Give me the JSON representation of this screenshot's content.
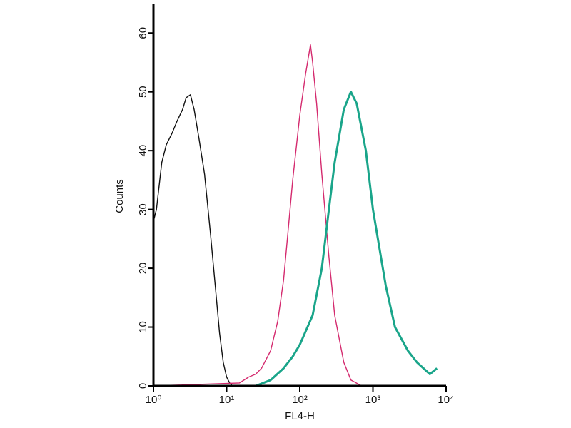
{
  "chart_data": {
    "type": "line",
    "x_label": "FL4-H",
    "y_label": "Counts",
    "xscale": "log",
    "xlim": [
      1,
      10000
    ],
    "xticks": [
      {
        "value": 1,
        "label": "10⁰"
      },
      {
        "value": 10,
        "label": "10¹"
      },
      {
        "value": 100,
        "label": "10²"
      },
      {
        "value": 1000,
        "label": "10³"
      },
      {
        "value": 10000,
        "label": "10⁴"
      }
    ],
    "ylim": [
      0,
      65
    ],
    "yticks": [
      0,
      10,
      20,
      30,
      40,
      50,
      60
    ],
    "grid": false,
    "series": [
      {
        "color": "#111111",
        "x": [
          1,
          1.1,
          1.3,
          1.5,
          1.8,
          2.1,
          2.5,
          2.8,
          3.2,
          3.6,
          4.2,
          5,
          6,
          7,
          8,
          9,
          10,
          11,
          12,
          14
        ],
        "values": [
          28,
          30,
          38,
          41,
          43,
          45,
          47,
          49,
          49.5,
          47,
          42,
          36,
          26,
          17,
          9,
          4,
          1.5,
          0.5,
          0,
          0
        ]
      },
      {
        "color": "#d42a6e",
        "x": [
          1,
          15,
          20,
          25,
          30,
          40,
          50,
          60,
          70,
          80,
          100,
          120,
          140,
          150,
          170,
          200,
          250,
          300,
          400,
          500,
          700,
          10000
        ],
        "values": [
          0,
          0.5,
          1.5,
          2,
          3,
          6,
          11,
          18,
          27,
          35,
          46,
          53,
          58,
          55,
          48,
          36,
          22,
          12,
          4,
          1,
          0,
          0
        ]
      },
      {
        "color": "#1aa58a",
        "x": [
          1,
          25,
          40,
          60,
          80,
          100,
          150,
          200,
          250,
          300,
          400,
          500,
          600,
          800,
          1000,
          1500,
          2000,
          3000,
          4000,
          6000,
          7500
        ],
        "values": [
          0,
          0,
          1,
          3,
          5,
          7,
          12,
          20,
          30,
          38,
          47,
          50,
          48,
          40,
          30,
          17,
          10,
          6,
          4,
          2,
          3
        ]
      }
    ]
  }
}
